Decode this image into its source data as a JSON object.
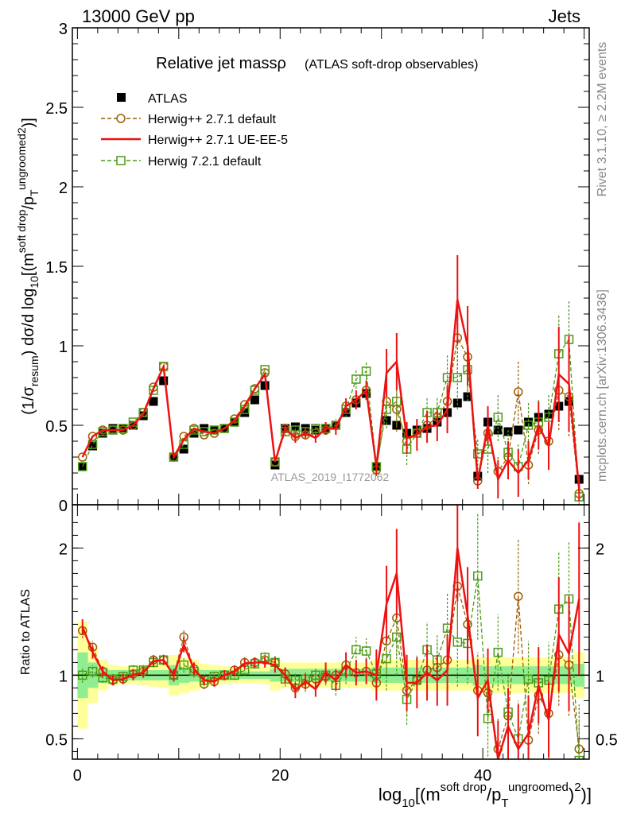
{
  "header": {
    "left": "13000 GeV pp",
    "right": "Jets"
  },
  "watermark": "ATLAS_2019_I1772062",
  "side_labels": {
    "rivet": "Rivet 3.1.10, ≥ 2.2M events",
    "mcplots": "mcplots.cern.ch [arXiv:1306.3436]"
  },
  "chart_data": [
    {
      "type": "line",
      "panel": "main",
      "title": "Relative jet massρ",
      "subtitle": "(ATLAS soft-drop observables)",
      "ylabel": "(1/σresum) dσ/d log10[(m soft drop/pT ungroomed)2)]",
      "xlim": [
        -0.5,
        50.5
      ],
      "ylim": [
        0,
        3
      ],
      "y_ticks": [
        "0",
        "0.5",
        "1",
        "1.5",
        "2",
        "2.5",
        "3"
      ],
      "legend": {
        "placement": "top-left",
        "entries": [
          "ATLAS",
          "Herwig++ 2.7.1 default",
          "Herwig++ 2.7.1 UE-EE-5",
          "Herwig 7.2.1 default"
        ]
      },
      "x": [
        0.5,
        1.5,
        2.5,
        3.5,
        4.5,
        5.5,
        6.5,
        7.5,
        8.5,
        9.5,
        10.5,
        11.5,
        12.5,
        13.5,
        14.5,
        15.5,
        16.5,
        17.5,
        18.5,
        19.5,
        20.5,
        21.5,
        22.5,
        23.5,
        24.5,
        25.5,
        26.5,
        27.5,
        28.5,
        29.5,
        30.5,
        31.5,
        32.5,
        33.5,
        34.5,
        35.5,
        36.5,
        37.5,
        38.5,
        39.5,
        40.5,
        41.5,
        42.5,
        43.5,
        44.5,
        45.5,
        46.5,
        47.5,
        48.5,
        49.5
      ],
      "series": [
        {
          "name": "ATLAS",
          "color": "#000000",
          "marker": "filled-square",
          "values": [
            0.24,
            0.37,
            0.45,
            0.48,
            0.48,
            0.5,
            0.56,
            0.65,
            0.78,
            0.3,
            0.35,
            0.45,
            0.48,
            0.47,
            0.48,
            0.52,
            0.58,
            0.66,
            0.75,
            0.25,
            0.48,
            0.49,
            0.48,
            0.47,
            0.48,
            0.5,
            0.58,
            0.64,
            0.7,
            0.24,
            0.53,
            0.5,
            0.45,
            0.47,
            0.48,
            0.52,
            0.58,
            0.64,
            0.68,
            0.18,
            0.52,
            0.47,
            0.46,
            0.47,
            0.52,
            0.55,
            0.57,
            0.62,
            0.65,
            0.16
          ],
          "err": [
            0.02,
            0.02,
            0.02,
            0.02,
            0.02,
            0.02,
            0.02,
            0.02,
            0.02,
            0.02,
            0.02,
            0.02,
            0.02,
            0.02,
            0.02,
            0.02,
            0.02,
            0.02,
            0.02,
            0.02,
            0.02,
            0.02,
            0.02,
            0.02,
            0.02,
            0.02,
            0.02,
            0.02,
            0.02,
            0.02,
            0.02,
            0.02,
            0.02,
            0.02,
            0.02,
            0.02,
            0.02,
            0.02,
            0.02,
            0.02,
            0.02,
            0.02,
            0.02,
            0.02,
            0.02,
            0.02,
            0.02,
            0.02,
            0.02,
            0.02
          ]
        },
        {
          "name": "Herwig++ 2.7.1 default",
          "color": "#a05a00",
          "marker": "open-circle",
          "dash": "5,3",
          "values": [
            0.3,
            0.43,
            0.47,
            0.47,
            0.47,
            0.5,
            0.58,
            0.74,
            0.87,
            0.3,
            0.43,
            0.48,
            0.44,
            0.45,
            0.48,
            0.54,
            0.63,
            0.73,
            0.83,
            0.27,
            0.48,
            0.43,
            0.44,
            0.45,
            0.47,
            0.5,
            0.62,
            0.66,
            0.72,
            0.22,
            0.65,
            0.6,
            0.4,
            0.45,
            0.5,
            0.55,
            0.65,
            1.05,
            0.93,
            0.15,
            0.45,
            0.21,
            0.3,
            0.71,
            0.25,
            0.47,
            0.4,
            0.72,
            0.68,
            0.07
          ],
          "err": [
            0.02,
            0.02,
            0.02,
            0.02,
            0.02,
            0.02,
            0.02,
            0.02,
            0.02,
            0.02,
            0.02,
            0.02,
            0.02,
            0.02,
            0.02,
            0.02,
            0.02,
            0.02,
            0.02,
            0.02,
            0.03,
            0.03,
            0.03,
            0.03,
            0.03,
            0.03,
            0.05,
            0.05,
            0.06,
            0.04,
            0.12,
            0.14,
            0.1,
            0.08,
            0.1,
            0.1,
            0.15,
            0.25,
            0.22,
            0.05,
            0.1,
            0.1,
            0.12,
            0.2,
            0.12,
            0.15,
            0.15,
            0.25,
            0.25,
            0.05
          ]
        },
        {
          "name": "Herwig++ 2.7.1 UE-EE-5",
          "color": "#ee1111",
          "marker": "line",
          "values": [
            0.3,
            0.43,
            0.47,
            0.47,
            0.47,
            0.5,
            0.57,
            0.73,
            0.87,
            0.3,
            0.41,
            0.48,
            0.46,
            0.45,
            0.48,
            0.53,
            0.62,
            0.73,
            0.82,
            0.27,
            0.48,
            0.42,
            0.45,
            0.42,
            0.48,
            0.48,
            0.62,
            0.66,
            0.72,
            0.24,
            0.83,
            0.9,
            0.42,
            0.44,
            0.49,
            0.5,
            0.6,
            1.29,
            1.0,
            0.15,
            0.5,
            0.16,
            0.28,
            0.2,
            0.28,
            0.5,
            0.37,
            0.82,
            0.76,
            0.1
          ],
          "err": [
            0.02,
            0.02,
            0.02,
            0.02,
            0.02,
            0.02,
            0.02,
            0.02,
            0.02,
            0.02,
            0.02,
            0.02,
            0.02,
            0.02,
            0.02,
            0.02,
            0.02,
            0.02,
            0.02,
            0.02,
            0.03,
            0.03,
            0.03,
            0.03,
            0.04,
            0.04,
            0.05,
            0.06,
            0.06,
            0.05,
            0.15,
            0.18,
            0.1,
            0.1,
            0.1,
            0.1,
            0.15,
            0.28,
            0.25,
            0.05,
            0.12,
            0.12,
            0.12,
            0.15,
            0.12,
            0.15,
            0.15,
            0.3,
            0.3,
            0.08
          ]
        },
        {
          "name": "Herwig 7.2.1 default",
          "color": "#4a9a14",
          "marker": "open-square",
          "dash": "5,3",
          "values": [
            0.24,
            0.38,
            0.46,
            0.47,
            0.48,
            0.52,
            0.58,
            0.72,
            0.87,
            0.3,
            0.38,
            0.47,
            0.46,
            0.47,
            0.48,
            0.52,
            0.6,
            0.72,
            0.85,
            0.27,
            0.46,
            0.47,
            0.46,
            0.48,
            0.48,
            0.5,
            0.6,
            0.79,
            0.84,
            0.24,
            0.6,
            0.65,
            0.35,
            0.45,
            0.58,
            0.58,
            0.8,
            0.8,
            0.85,
            0.32,
            0.35,
            0.55,
            0.33,
            0.24,
            0.5,
            0.52,
            0.55,
            0.95,
            1.04,
            0.05
          ],
          "err": [
            0.02,
            0.02,
            0.02,
            0.02,
            0.02,
            0.02,
            0.02,
            0.02,
            0.02,
            0.02,
            0.02,
            0.02,
            0.02,
            0.02,
            0.02,
            0.02,
            0.02,
            0.02,
            0.02,
            0.02,
            0.03,
            0.03,
            0.03,
            0.03,
            0.04,
            0.04,
            0.05,
            0.06,
            0.06,
            0.05,
            0.12,
            0.15,
            0.1,
            0.1,
            0.1,
            0.1,
            0.15,
            0.2,
            0.2,
            0.1,
            0.15,
            0.15,
            0.15,
            0.15,
            0.15,
            0.15,
            0.15,
            0.25,
            0.25,
            0.05
          ]
        }
      ]
    },
    {
      "type": "line",
      "panel": "ratio",
      "ylabel": "Ratio to ATLAS",
      "xlabel": "log10[(m soft drop/pT ungroomed)2)]",
      "xlim": [
        -0.5,
        50.5
      ],
      "ylim": [
        0.34,
        2.34
      ],
      "x_ticks": [
        "0",
        "20",
        "40"
      ],
      "y_ticks": [
        "0.5",
        "1",
        "2"
      ],
      "bands": {
        "stat_color": "#90ee90",
        "total_color": "#ffff99",
        "stat": [
          0.18,
          0.1,
          0.06,
          0.04,
          0.04,
          0.04,
          0.04,
          0.04,
          0.04,
          0.08,
          0.06,
          0.05,
          0.04,
          0.04,
          0.04,
          0.03,
          0.03,
          0.03,
          0.03,
          0.05,
          0.05,
          0.05,
          0.05,
          0.05,
          0.05,
          0.05,
          0.05,
          0.05,
          0.05,
          0.06,
          0.06,
          0.06,
          0.06,
          0.06,
          0.06,
          0.06,
          0.06,
          0.06,
          0.06,
          0.08,
          0.07,
          0.07,
          0.07,
          0.07,
          0.07,
          0.07,
          0.07,
          0.07,
          0.07,
          0.09
        ],
        "total": [
          0.42,
          0.22,
          0.12,
          0.08,
          0.07,
          0.07,
          0.08,
          0.09,
          0.1,
          0.16,
          0.14,
          0.12,
          0.09,
          0.08,
          0.07,
          0.06,
          0.06,
          0.06,
          0.07,
          0.12,
          0.1,
          0.1,
          0.1,
          0.1,
          0.1,
          0.1,
          0.1,
          0.1,
          0.1,
          0.12,
          0.12,
          0.12,
          0.12,
          0.12,
          0.12,
          0.12,
          0.12,
          0.12,
          0.12,
          0.14,
          0.14,
          0.14,
          0.14,
          0.14,
          0.14,
          0.14,
          0.14,
          0.14,
          0.14,
          0.18
        ]
      },
      "series": [
        {
          "name": "Herwig++ 2.7.1 default",
          "color": "#a05a00",
          "marker": "open-circle",
          "dash": "5,3",
          "values": [
            1.35,
            1.22,
            1.03,
            0.96,
            0.97,
            1.01,
            1.03,
            1.12,
            1.12,
            1.0,
            1.3,
            1.05,
            0.93,
            0.95,
            1.0,
            1.04,
            1.1,
            1.1,
            1.12,
            1.1,
            1.01,
            0.9,
            0.93,
            0.97,
            0.99,
            1.0,
            1.08,
            1.02,
            1.03,
            0.94,
            1.27,
            1.45,
            0.88,
            0.96,
            1.04,
            1.06,
            1.12,
            1.7,
            1.4,
            0.88,
            0.86,
            0.42,
            0.68,
            1.62,
            0.49,
            0.84,
            0.7,
            1.16,
            1.08,
            0.42
          ],
          "err": [
            0.06,
            0.05,
            0.04,
            0.04,
            0.04,
            0.04,
            0.04,
            0.04,
            0.04,
            0.05,
            0.06,
            0.05,
            0.04,
            0.04,
            0.04,
            0.04,
            0.04,
            0.04,
            0.04,
            0.06,
            0.06,
            0.06,
            0.06,
            0.06,
            0.06,
            0.06,
            0.08,
            0.08,
            0.08,
            0.12,
            0.25,
            0.3,
            0.2,
            0.18,
            0.2,
            0.2,
            0.25,
            0.4,
            0.35,
            0.3,
            0.22,
            0.25,
            0.3,
            0.45,
            0.3,
            0.3,
            0.3,
            0.4,
            0.4,
            0.35
          ]
        },
        {
          "name": "Herwig++ 2.7.1 UE-EE-5",
          "color": "#ee1111",
          "marker": "line",
          "values": [
            1.38,
            1.18,
            1.03,
            0.96,
            0.97,
            1.0,
            1.02,
            1.11,
            1.12,
            1.0,
            1.24,
            1.05,
            0.96,
            0.95,
            1.0,
            1.03,
            1.09,
            1.1,
            1.1,
            1.08,
            1.0,
            0.88,
            0.95,
            0.89,
            1.02,
            0.96,
            1.08,
            1.02,
            1.03,
            1.0,
            1.56,
            1.8,
            0.94,
            0.94,
            1.02,
            0.96,
            1.04,
            2.0,
            1.47,
            0.82,
            0.96,
            0.34,
            0.6,
            0.42,
            0.54,
            0.92,
            0.65,
            1.32,
            1.17,
            1.6
          ],
          "err": [
            0.06,
            0.05,
            0.04,
            0.04,
            0.04,
            0.04,
            0.04,
            0.04,
            0.04,
            0.05,
            0.06,
            0.05,
            0.04,
            0.04,
            0.04,
            0.04,
            0.04,
            0.04,
            0.04,
            0.06,
            0.06,
            0.06,
            0.06,
            0.06,
            0.08,
            0.08,
            0.1,
            0.1,
            0.1,
            0.2,
            0.3,
            0.35,
            0.22,
            0.2,
            0.22,
            0.2,
            0.28,
            0.42,
            0.38,
            0.3,
            0.25,
            0.3,
            0.3,
            0.35,
            0.3,
            0.3,
            0.3,
            0.45,
            0.45,
            0.6
          ]
        },
        {
          "name": "Herwig 7.2.1 default",
          "color": "#4a9a14",
          "marker": "open-square",
          "dash": "5,3",
          "values": [
            1.0,
            1.03,
            0.98,
            0.97,
            0.99,
            1.04,
            1.04,
            1.1,
            1.12,
            1.0,
            1.08,
            1.03,
            0.96,
            0.99,
            1.0,
            1.0,
            1.04,
            1.09,
            1.14,
            1.1,
            0.97,
            0.96,
            0.97,
            1.0,
            1.0,
            0.92,
            1.03,
            1.2,
            1.19,
            1.01,
            1.13,
            1.3,
            0.81,
            0.96,
            1.2,
            1.12,
            1.37,
            1.26,
            1.25,
            1.78,
            0.66,
            1.18,
            0.71,
            0.5,
            0.97,
            0.94,
            0.96,
            1.52,
            1.6,
            0.33
          ],
          "err": [
            0.06,
            0.05,
            0.04,
            0.04,
            0.04,
            0.04,
            0.04,
            0.04,
            0.04,
            0.05,
            0.06,
            0.05,
            0.04,
            0.04,
            0.04,
            0.04,
            0.04,
            0.04,
            0.04,
            0.06,
            0.06,
            0.06,
            0.06,
            0.06,
            0.08,
            0.08,
            0.1,
            0.1,
            0.1,
            0.2,
            0.25,
            0.3,
            0.2,
            0.2,
            0.22,
            0.2,
            0.28,
            0.35,
            0.32,
            0.5,
            0.3,
            0.3,
            0.3,
            0.3,
            0.3,
            0.3,
            0.3,
            0.45,
            0.45,
            0.3
          ]
        }
      ]
    }
  ]
}
